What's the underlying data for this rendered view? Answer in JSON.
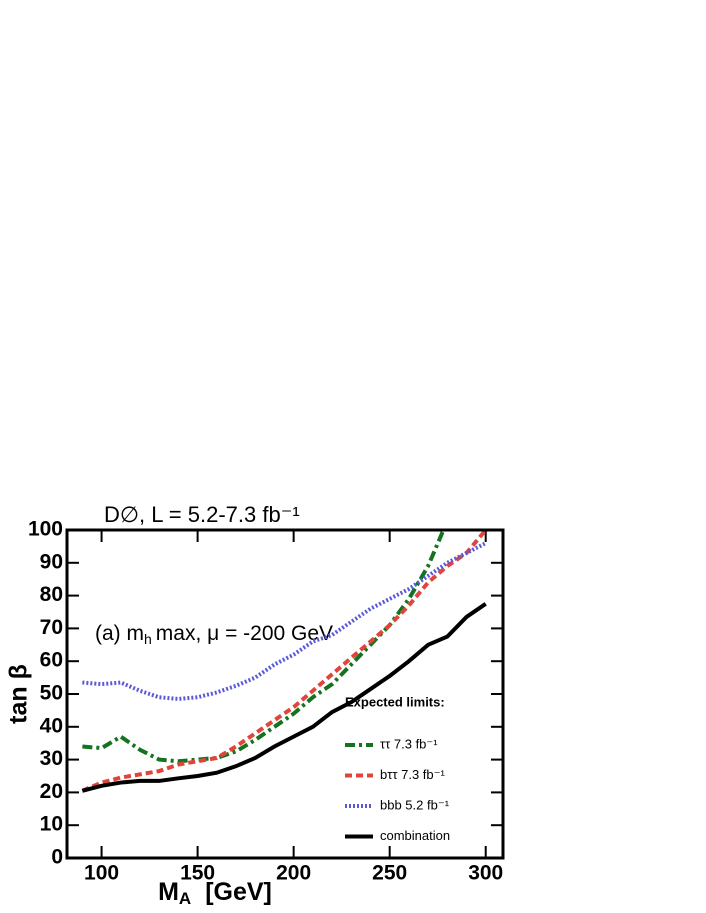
{
  "chart_data": {
    "type": "line",
    "title": "D∅, L = 5.2-7.3 fb⁻¹",
    "x_label": {
      "main": "M",
      "sub": "A",
      "rest": "[GeV]"
    },
    "y_label": "tan β",
    "annotation": {
      "pre": "(a) m",
      "sub": "h",
      "post": "max, μ = -200 GeV"
    },
    "legend_title": "Expected limits:",
    "xlim": [
      82,
      309
    ],
    "xticks": [
      100,
      150,
      200,
      250,
      300
    ],
    "ylim": [
      0,
      100
    ],
    "yticks": [
      0,
      10,
      20,
      30,
      40,
      50,
      60,
      70,
      80,
      90,
      100
    ],
    "series": [
      {
        "name": "ττ  7.3 fb⁻¹",
        "color": "#14731e",
        "style": "dashdot",
        "x": [
          90,
          100,
          110,
          120,
          130,
          140,
          150,
          160,
          170,
          180,
          190,
          200,
          210,
          220,
          230,
          240,
          250,
          260,
          270,
          278
        ],
        "values": [
          34,
          33.5,
          37,
          33,
          30,
          29.5,
          30,
          30.5,
          32.5,
          36,
          40,
          44,
          49,
          53,
          59,
          65,
          71,
          79,
          89,
          100
        ]
      },
      {
        "name": "bττ 7.3 fb⁻¹",
        "color": "#e0443a",
        "style": "dashed",
        "x": [
          90,
          100,
          110,
          120,
          130,
          140,
          150,
          160,
          170,
          180,
          190,
          200,
          210,
          220,
          230,
          240,
          250,
          260,
          270,
          280,
          290,
          300
        ],
        "values": [
          20.5,
          23,
          24.5,
          25.5,
          26.5,
          28.5,
          29.5,
          30.5,
          34,
          38,
          42,
          46,
          51,
          56,
          61,
          66,
          71,
          77,
          84,
          89,
          93,
          100
        ]
      },
      {
        "name": "bbb 5.2 fb⁻¹",
        "color": "#5a5ad8",
        "style": "dotted",
        "x": [
          90,
          100,
          110,
          120,
          130,
          140,
          150,
          160,
          170,
          180,
          190,
          200,
          210,
          220,
          230,
          240,
          250,
          260,
          270,
          280,
          290,
          300
        ],
        "values": [
          53.5,
          53,
          53.5,
          51,
          49,
          48.5,
          49,
          50.5,
          52.5,
          55,
          59,
          62,
          66,
          68,
          72,
          76,
          79,
          82,
          86,
          90,
          93,
          96
        ]
      },
      {
        "name": "combination",
        "color": "#000000",
        "style": "solid",
        "x": [
          90,
          100,
          110,
          120,
          130,
          140,
          150,
          160,
          170,
          180,
          190,
          200,
          210,
          220,
          230,
          240,
          250,
          260,
          270,
          280,
          290,
          300
        ],
        "values": [
          20.5,
          22,
          23,
          23.5,
          23.5,
          24.3,
          25,
          26,
          28,
          30.5,
          34,
          37,
          40,
          44.5,
          47.5,
          51.5,
          55.5,
          60,
          65,
          67.5,
          73.5,
          77.5
        ]
      }
    ]
  }
}
